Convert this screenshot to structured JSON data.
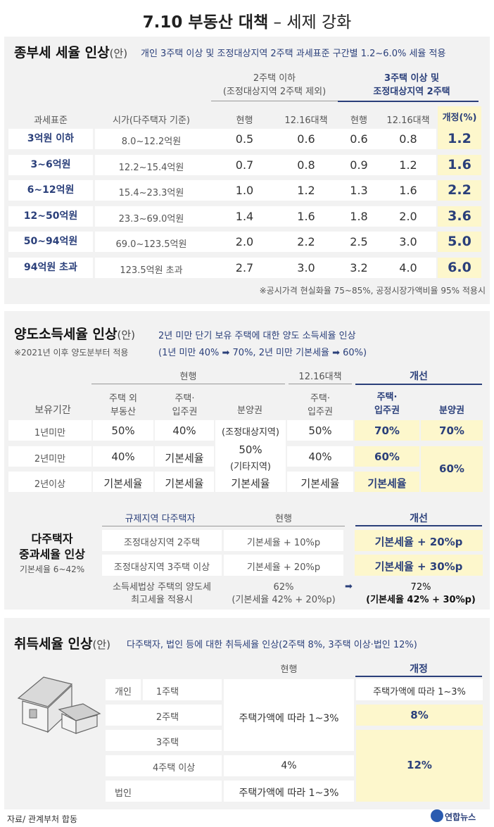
{
  "title_main": "7.10 부동산 대책",
  "title_sub": "– 세제 강화",
  "s1": {
    "heading": "종부세 세율 인상",
    "heading_suffix": "(안)",
    "desc": "개인 3주택 이상 및 조정대상지역 2주택 과세표준 구간별 1.2~6.0% 세율 적용",
    "grp_a_l1": "2주택 이하",
    "grp_a_l2": "(조정대상지역 2주택 제외)",
    "grp_b_l1": "3주택 이상 및",
    "grp_b_l2": "조정대상지역 2주택",
    "headers": [
      "과세표준",
      "시가(다주택자 기준)",
      "현행",
      "12.16대책",
      "현행",
      "12.16대책",
      "개정(%)"
    ],
    "rows": [
      [
        "3억원 이하",
        "8.0~12.2억원",
        "0.5",
        "0.6",
        "0.6",
        "0.8",
        "1.2"
      ],
      [
        "3~6억원",
        "12.2~15.4억원",
        "0.7",
        "0.8",
        "0.9",
        "1.2",
        "1.6"
      ],
      [
        "6~12억원",
        "15.4~23.3억원",
        "1.0",
        "1.2",
        "1.3",
        "1.6",
        "2.2"
      ],
      [
        "12~50억원",
        "23.3~69.0억원",
        "1.4",
        "1.6",
        "1.8",
        "2.0",
        "3.6"
      ],
      [
        "50~94억원",
        "69.0~123.5억원",
        "2.0",
        "2.2",
        "2.5",
        "3.0",
        "5.0"
      ],
      [
        "94억원 초과",
        "123.5억원 초과",
        "2.7",
        "3.0",
        "3.2",
        "4.0",
        "6.0"
      ]
    ],
    "note": "※공시가격 현실화율 75~85%, 공정시장가액비율 95% 적용시"
  },
  "s2": {
    "heading": "양도소득세율 인상",
    "heading_suffix": "(안)",
    "desc1": "2년 미만 단기 보유 주택에 대한 양도 소득세율 인상",
    "desc2": "(1년 미만 40% ➡ 70%, 2년 미만 기본세율 ➡ 60%)",
    "note": "※2021년 이후 양도분부터 적용",
    "g_cur": "현행",
    "g_1216": "12.16대책",
    "g_new": "개선",
    "h_period": "보유기간",
    "h_c1a": "주택 외",
    "h_c1b": "부동산",
    "h_c2a": "주택·",
    "h_c2b": "입주권",
    "h_c3": "분양권",
    "h_c4a": "주택·",
    "h_c4b": "입주권",
    "h_c5a": "주택·",
    "h_c5b": "입주권",
    "h_c6": "분양권",
    "r1": [
      "1년미만",
      "50%",
      "40%",
      "(조정대상지역)",
      "50%",
      "70%",
      "70%"
    ],
    "r2": [
      "2년미만",
      "40%",
      "기본세율",
      "40%",
      "60%"
    ],
    "r2_mid_a": "50%",
    "r2_mid_b": "(기타지역)",
    "r23_new_bun": "60%",
    "r3": [
      "2년이상",
      "기본세율",
      "기본세율",
      "기본세율",
      "기본세율",
      "기본세율"
    ],
    "multi_t1": "다주택자",
    "multi_t2": "중과세율 인상",
    "multi_t3": "기본세율 6~42%",
    "m_h1": "규제지역 다주택자",
    "m_h2": "현행",
    "m_h3": "개선",
    "m_r1": [
      "조정대상지역 2주택",
      "기본세율 + 10%p",
      "기본세율 + 20%p"
    ],
    "m_r2": [
      "조정대상지역 3주택 이상",
      "기본세율 + 20%p",
      "기본세율 + 30%p"
    ],
    "m_r3a": "소득세법상 주택의 양도세",
    "m_r3b": "최고세율 적용시",
    "m_r3c1": "62%",
    "m_r3c2": "(기본세율 42% + 20%p)",
    "m_r3d1": "72%",
    "m_r3d2": "(기본세율 42% + 30%p)"
  },
  "s3": {
    "heading": "취득세율 인상",
    "heading_suffix": "(안)",
    "desc": "다주택자, 법인 등에 대한 취득세율 인상(2주택 8%, 3주택 이상·법인 12%)",
    "h_cur": "현행",
    "h_new": "개정",
    "personal": "개인",
    "corp": "법인",
    "r": [
      "1주택",
      "2주택",
      "3주택",
      "4주택 이상"
    ],
    "cur_1to3": "주택가액에 따라 1~3%",
    "cur_4": "4%",
    "cur_corp": "주택가액에 따라 1~3%",
    "new_1": "주택가액에 따라 1~3%",
    "new_2": "8%",
    "new_3": "12%"
  },
  "footer_src": "자료/ 관계부처 합동",
  "footer_logo": "연합뉴스"
}
